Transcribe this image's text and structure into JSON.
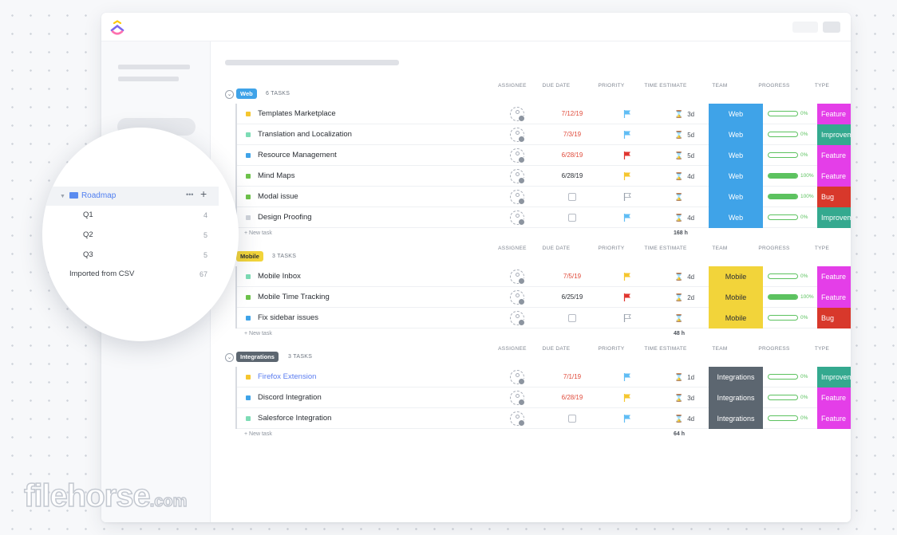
{
  "columns": {
    "assignee": "ASSIGNEE",
    "due_date": "DUE DATE",
    "priority": "PRIORITY",
    "time_estimate": "TIME ESTIMATE",
    "team": "TEAM",
    "progress": "PROGRESS",
    "type": "TYPE"
  },
  "new_task_label": "+ New task",
  "colors": {
    "web": "#3fa3e8",
    "mobile": "#f2d43a",
    "integrations": "#5c6670",
    "feature": "#e43ee8",
    "improvement": "#34a98f",
    "bug": "#d8382b",
    "progress": "#5cc25f",
    "flag_blue": "#60bdf4",
    "flag_yellow": "#f5c62f",
    "flag_red": "#e0352f"
  },
  "groups": [
    {
      "badge": "Web",
      "count": "6 TASKS",
      "total": "168 h",
      "tasks": [
        {
          "name": "Templates Marketplace",
          "dot": "#f5c62f",
          "due": "7/12/19",
          "due_color": "#e04a3a",
          "priority": "flag-blue",
          "est": "3d",
          "team": "Web",
          "progress": "0%",
          "progress_value": 0,
          "type": "Feature",
          "type_color": "#e43ee8"
        },
        {
          "name": "Translation and Localization",
          "dot": "#7ddcb5",
          "due": "7/3/19",
          "due_color": "#e04a3a",
          "priority": "flag-blue",
          "est": "5d",
          "team": "Web",
          "progress": "0%",
          "progress_value": 0,
          "type": "Improvement",
          "type_color": "#34a98f"
        },
        {
          "name": "Resource Management",
          "dot": "#3fa3e8",
          "due": "6/28/19",
          "due_color": "#e04a3a",
          "priority": "flag-red",
          "est": "5d",
          "team": "Web",
          "progress": "0%",
          "progress_value": 0,
          "type": "Feature",
          "type_color": "#e43ee8"
        },
        {
          "name": "Mind Maps",
          "dot": "#6dc24b",
          "due": "6/28/19",
          "due_color": "#2a2e34",
          "priority": "flag-yellow",
          "est": "4d",
          "team": "Web",
          "progress": "100%",
          "progress_value": 100,
          "type": "Feature",
          "type_color": "#e43ee8"
        },
        {
          "name": "Modal issue",
          "dot": "#6dc24b",
          "due": "",
          "due_color": "",
          "priority": "flag-empty",
          "est": "",
          "team": "Web",
          "progress": "100%",
          "progress_value": 100,
          "type": "Bug",
          "type_color": "#d8382b"
        },
        {
          "name": "Design Proofing",
          "dot": "#cfd3da",
          "due": "",
          "due_color": "",
          "priority": "flag-blue",
          "est": "4d",
          "team": "Web",
          "progress": "0%",
          "progress_value": 0,
          "type": "Improvement",
          "type_color": "#34a98f"
        }
      ]
    },
    {
      "badge": "Mobile",
      "count": "3 TASKS",
      "total": "48 h",
      "tasks": [
        {
          "name": "Mobile Inbox",
          "dot": "#7ddcb5",
          "due": "7/5/19",
          "due_color": "#e04a3a",
          "priority": "flag-yellow",
          "est": "4d",
          "team": "Mobile",
          "progress": "0%",
          "progress_value": 0,
          "type": "Feature",
          "type_color": "#e43ee8"
        },
        {
          "name": "Mobile Time Tracking",
          "dot": "#6dc24b",
          "due": "6/25/19",
          "due_color": "#2a2e34",
          "priority": "flag-red",
          "est": "2d",
          "team": "Mobile",
          "progress": "100%",
          "progress_value": 100,
          "type": "Feature",
          "type_color": "#e43ee8"
        },
        {
          "name": "Fix sidebar issues",
          "dot": "#3fa3e8",
          "due": "",
          "due_color": "",
          "priority": "flag-empty",
          "est": "",
          "team": "Mobile",
          "progress": "0%",
          "progress_value": 0,
          "type": "Bug",
          "type_color": "#d8382b"
        }
      ]
    },
    {
      "badge": "Integrations",
      "count": "3 TASKS",
      "total": "64 h",
      "tasks": [
        {
          "name": "Firefox Extension",
          "dot": "#f5c62f",
          "due": "7/1/19",
          "due_color": "#e04a3a",
          "priority": "flag-blue",
          "est": "1d",
          "team": "Integrations",
          "progress": "0%",
          "progress_value": 0,
          "type": "Improvement",
          "type_color": "#34a98f",
          "link": true
        },
        {
          "name": "Discord Integration",
          "dot": "#3fa3e8",
          "due": "6/28/19",
          "due_color": "#e04a3a",
          "priority": "flag-yellow",
          "est": "3d",
          "team": "Integrations",
          "progress": "0%",
          "progress_value": 0,
          "type": "Feature",
          "type_color": "#e43ee8"
        },
        {
          "name": "Salesforce Integration",
          "dot": "#7ddcb5",
          "due": "",
          "due_color": "",
          "priority": "flag-blue",
          "est": "4d",
          "team": "Integrations",
          "progress": "0%",
          "progress_value": 0,
          "type": "Feature",
          "type_color": "#e43ee8"
        }
      ]
    }
  ],
  "sidebar_zoom": {
    "folder": "Roadmap",
    "items": [
      {
        "label": "Q1",
        "count": "4"
      },
      {
        "label": "Q2",
        "count": "5"
      },
      {
        "label": "Q3",
        "count": "5"
      },
      {
        "label": "Imported from CSV",
        "count": "67"
      }
    ]
  },
  "watermark": {
    "main": "filehorse",
    "suffix": ".com"
  }
}
